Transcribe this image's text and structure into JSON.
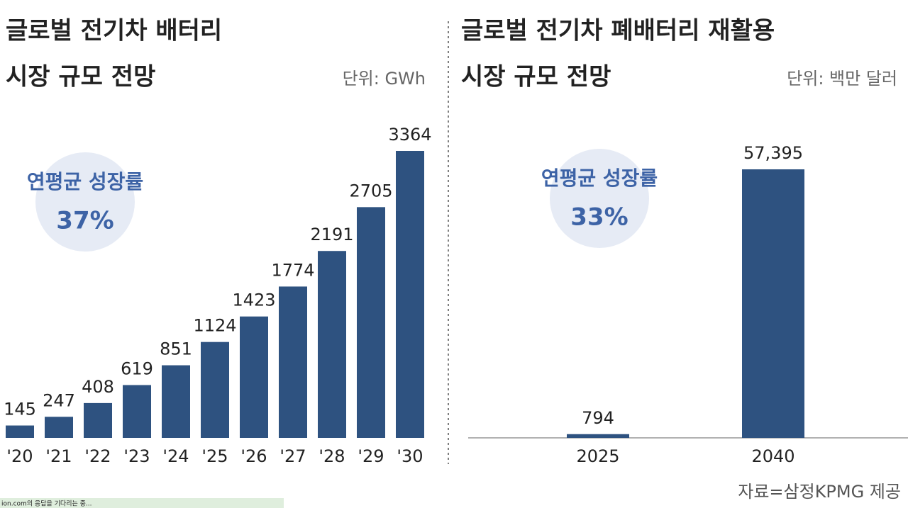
{
  "chart_data": [
    {
      "type": "bar",
      "title": [
        "글로벌 전기차 배터리",
        "시장 규모 전망"
      ],
      "unit": "단위: GWh",
      "annotation": [
        "연평균 성장률",
        "37%"
      ],
      "categories": [
        "'20",
        "'21",
        "'22",
        "'23",
        "'24",
        "'25",
        "'26",
        "'27",
        "'28",
        "'29",
        "'30"
      ],
      "values": [
        145,
        247,
        408,
        619,
        851,
        1124,
        1423,
        1774,
        2191,
        2705,
        3364
      ],
      "color": "#2e5280"
    },
    {
      "type": "bar",
      "title": [
        "글로벌 전기차 폐배터리 재활용",
        "시장 규모 전망"
      ],
      "unit": "단위: 백만 달러",
      "annotation": [
        "연평균 성장률",
        "33%"
      ],
      "categories": [
        "2025",
        "2040"
      ],
      "values": [
        794,
        57395
      ],
      "value_labels": [
        "794",
        "57,395"
      ],
      "color": "#2e5280"
    }
  ],
  "source": "자료=삼정KPMG 제공",
  "status": "ion.com의 응답을 기다리는 중..."
}
